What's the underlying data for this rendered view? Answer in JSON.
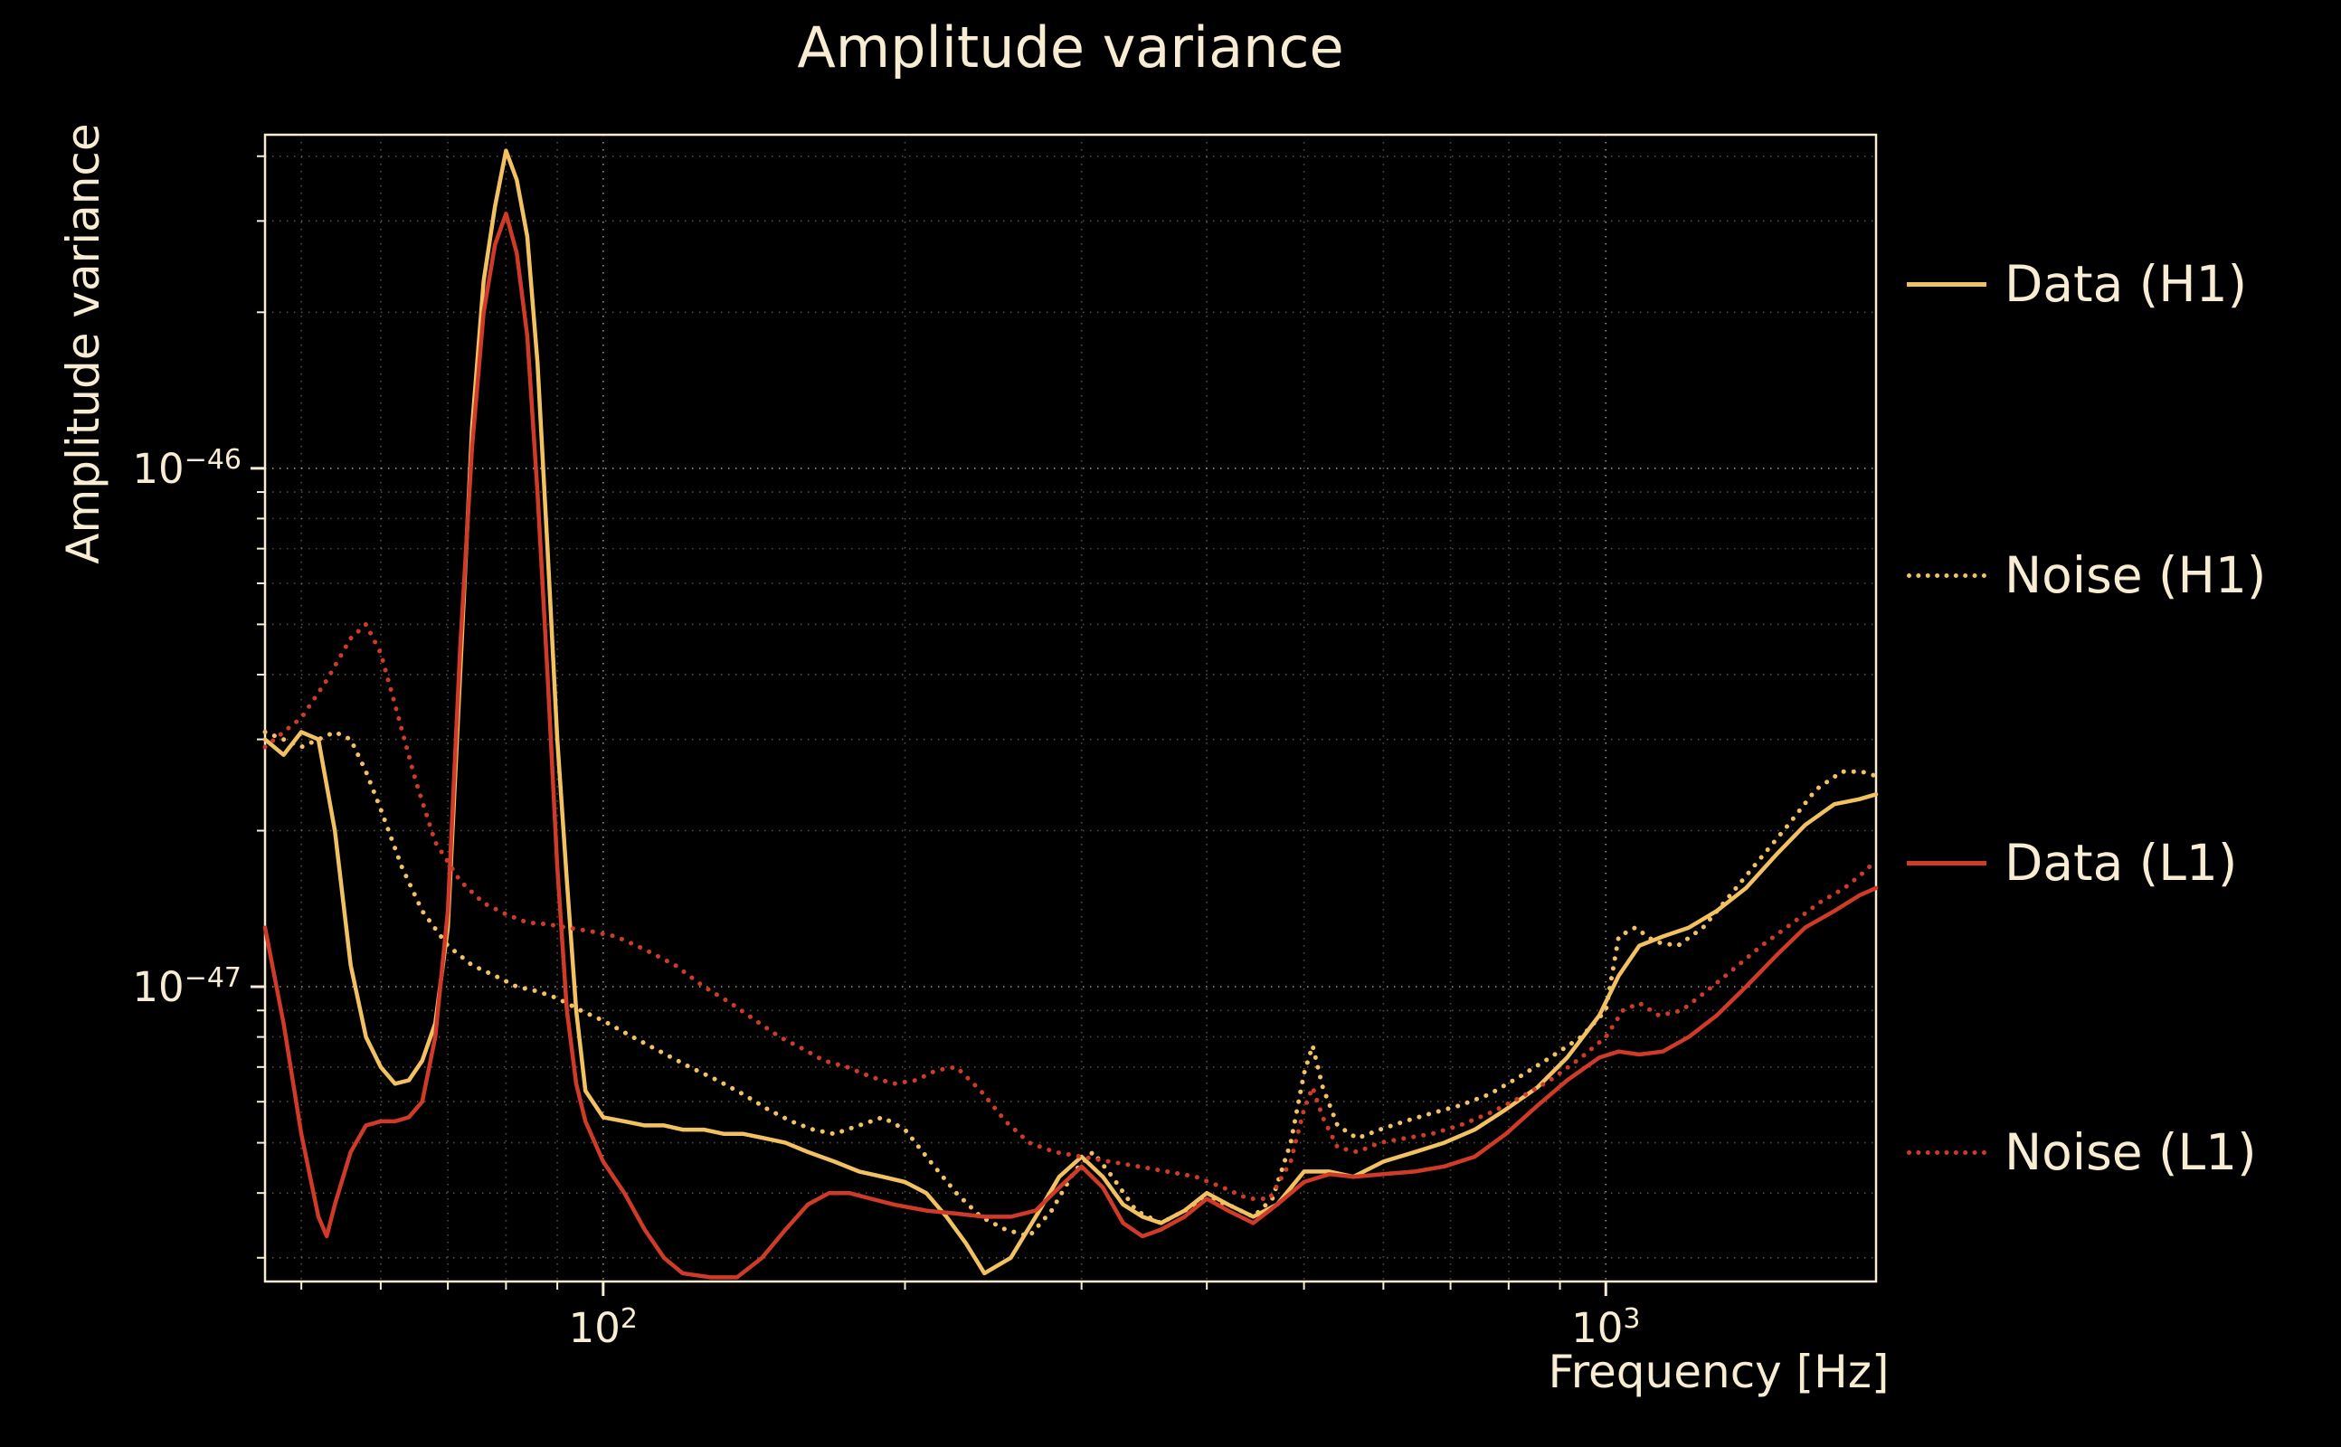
{
  "title": "Amplitude variance",
  "colors": {
    "background": "#000000",
    "text": "#f8edd2",
    "grid": "#f8edd2",
    "h1": "#f2c262",
    "l1": "#cf3b28"
  },
  "chart_data": {
    "type": "line",
    "title": "Amplitude variance",
    "xlabel": "Frequency [Hz]",
    "ylabel": "Amplitude variance",
    "xscale": "log",
    "yscale": "log",
    "xlim": [
      46,
      1860
    ],
    "ylim": [
      2.7e-48,
      4.4e-46
    ],
    "grid": true,
    "legend_position": "right-outside",
    "x_tick_labels": [
      {
        "value": 100,
        "base": "10",
        "exp": "2"
      },
      {
        "value": 1000,
        "base": "10",
        "exp": "3"
      }
    ],
    "y_tick_labels": [
      {
        "value": 1e-46,
        "base": "10",
        "exp": "−46"
      },
      {
        "value": 1e-47,
        "base": "10",
        "exp": "−47"
      }
    ],
    "series": [
      {
        "name": "Data (H1)",
        "color": "#f2c262",
        "style": "solid",
        "x": [
          46,
          48,
          50,
          52,
          54,
          56,
          58,
          60,
          62,
          64,
          66,
          68,
          70,
          72,
          74,
          76,
          78,
          80,
          82,
          84,
          86,
          88,
          90,
          92,
          94,
          96,
          100,
          105,
          110,
          115,
          120,
          126,
          132,
          138,
          145,
          152,
          160,
          170,
          180,
          190,
          200,
          210,
          220,
          230,
          240,
          255,
          270,
          285,
          300,
          315,
          330,
          345,
          360,
          380,
          400,
          420,
          445,
          470,
          500,
          530,
          560,
          600,
          645,
          690,
          740,
          795,
          855,
          915,
          985,
          1030,
          1080,
          1140,
          1210,
          1290,
          1380,
          1480,
          1580,
          1690,
          1790,
          1860
        ],
        "y": [
          3e-47,
          2.8e-47,
          3.1e-47,
          3e-47,
          2e-47,
          1.1e-47,
          8e-48,
          7e-48,
          6.5e-48,
          6.6e-48,
          7.2e-48,
          8.5e-48,
          1.3e-47,
          4e-47,
          1.2e-46,
          2.3e-46,
          3.2e-46,
          4.1e-46,
          3.6e-46,
          2.8e-46,
          1.6e-46,
          7e-47,
          3e-47,
          1.6e-47,
          9e-48,
          6.3e-48,
          5.6e-48,
          5.5e-48,
          5.4e-48,
          5.4e-48,
          5.3e-48,
          5.3e-48,
          5.2e-48,
          5.2e-48,
          5.1e-48,
          5e-48,
          4.8e-48,
          4.6e-48,
          4.4e-48,
          4.3e-48,
          4.2e-48,
          4e-48,
          3.6e-48,
          3.2e-48,
          2.8e-48,
          3e-48,
          3.6e-48,
          4.3e-48,
          4.7e-48,
          4.3e-48,
          3.8e-48,
          3.6e-48,
          3.5e-48,
          3.7e-48,
          4e-48,
          3.8e-48,
          3.6e-48,
          3.8e-48,
          4.4e-48,
          4.4e-48,
          4.3e-48,
          4.6e-48,
          4.8e-48,
          5e-48,
          5.3e-48,
          5.8e-48,
          6.4e-48,
          7.3e-48,
          8.8e-48,
          1.05e-47,
          1.2e-47,
          1.25e-47,
          1.3e-47,
          1.4e-47,
          1.55e-47,
          1.8e-47,
          2.05e-47,
          2.25e-47,
          2.3e-47,
          2.35e-47
        ]
      },
      {
        "name": "Noise (H1)",
        "color": "#f2c262",
        "style": "dotted",
        "x": [
          46,
          48,
          50,
          52,
          54,
          56,
          58,
          60,
          63,
          66,
          70,
          74,
          78,
          82,
          86,
          90,
          95,
          100,
          107,
          114,
          122,
          130,
          138,
          146,
          154,
          162,
          170,
          180,
          190,
          200,
          212,
          225,
          238,
          252,
          266,
          280,
          295,
          308,
          322,
          340,
          360,
          380,
          400,
          420,
          445,
          465,
          485,
          500,
          510,
          522,
          540,
          565,
          595,
          630,
          670,
          715,
          765,
          820,
          880,
          945,
          1000,
          1030,
          1070,
          1120,
          1180,
          1250,
          1330,
          1420,
          1520,
          1620,
          1720,
          1800,
          1860
        ],
        "y": [
          3.1e-47,
          3e-47,
          2.9e-47,
          3e-47,
          3.1e-47,
          3e-47,
          2.6e-47,
          2.2e-47,
          1.7e-47,
          1.4e-47,
          1.2e-47,
          1.1e-47,
          1.05e-47,
          1e-47,
          9.8e-48,
          9.5e-48,
          9e-48,
          8.6e-48,
          8e-48,
          7.5e-48,
          7e-48,
          6.6e-48,
          6.2e-48,
          5.8e-48,
          5.5e-48,
          5.3e-48,
          5.2e-48,
          5.4e-48,
          5.6e-48,
          5.3e-48,
          4.6e-48,
          4e-48,
          3.6e-48,
          3.4e-48,
          3.3e-48,
          3.7e-48,
          4.4e-48,
          4.8e-48,
          4.3e-48,
          3.7e-48,
          3.5e-48,
          3.7e-48,
          3.9e-48,
          3.8e-48,
          3.6e-48,
          3.9e-48,
          5e-48,
          6.8e-48,
          7.7e-48,
          6.4e-48,
          5.4e-48,
          5.1e-48,
          5.3e-48,
          5.5e-48,
          5.7e-48,
          5.9e-48,
          6.2e-48,
          6.7e-48,
          7.3e-48,
          8e-48,
          9e-48,
          1.25e-47,
          1.3e-47,
          1.22e-47,
          1.2e-47,
          1.3e-47,
          1.5e-47,
          1.75e-47,
          2.05e-47,
          2.4e-47,
          2.6e-47,
          2.6e-47,
          2.55e-47
        ]
      },
      {
        "name": "Data (L1)",
        "color": "#cf3b28",
        "style": "solid",
        "x": [
          46,
          48,
          50,
          52,
          53,
          54,
          56,
          58,
          60,
          62,
          64,
          66,
          68,
          70,
          72,
          74,
          76,
          78,
          80,
          82,
          84,
          86,
          88,
          90,
          92,
          94,
          96,
          100,
          105,
          110,
          115,
          120,
          128,
          136,
          144,
          152,
          160,
          168,
          176,
          185,
          195,
          210,
          225,
          240,
          255,
          270,
          285,
          300,
          315,
          330,
          345,
          360,
          380,
          400,
          420,
          445,
          470,
          500,
          530,
          560,
          600,
          645,
          690,
          740,
          795,
          855,
          915,
          985,
          1030,
          1080,
          1140,
          1210,
          1290,
          1380,
          1480,
          1580,
          1690,
          1790,
          1860
        ],
        "y": [
          1.3e-47,
          8.5e-48,
          5.2e-48,
          3.6e-48,
          3.3e-48,
          3.8e-48,
          4.8e-48,
          5.4e-48,
          5.5e-48,
          5.5e-48,
          5.6e-48,
          6e-48,
          8e-48,
          1.4e-47,
          4.5e-47,
          1.1e-46,
          2e-46,
          2.7e-46,
          3.1e-46,
          2.6e-46,
          1.8e-46,
          9e-47,
          4e-47,
          1.7e-47,
          9e-48,
          6.5e-48,
          5.5e-48,
          4.6e-48,
          4e-48,
          3.4e-48,
          3e-48,
          2.8e-48,
          2.75e-48,
          2.75e-48,
          3e-48,
          3.4e-48,
          3.8e-48,
          4e-48,
          4e-48,
          3.9e-48,
          3.8e-48,
          3.7e-48,
          3.65e-48,
          3.6e-48,
          3.6e-48,
          3.7e-48,
          4.1e-48,
          4.5e-48,
          4.1e-48,
          3.5e-48,
          3.3e-48,
          3.4e-48,
          3.6e-48,
          3.9e-48,
          3.7e-48,
          3.5e-48,
          3.8e-48,
          4.2e-48,
          4.35e-48,
          4.3e-48,
          4.35e-48,
          4.4e-48,
          4.5e-48,
          4.7e-48,
          5.2e-48,
          5.9e-48,
          6.6e-48,
          7.3e-48,
          7.5e-48,
          7.4e-48,
          7.5e-48,
          8e-48,
          8.8e-48,
          1e-47,
          1.15e-47,
          1.3e-47,
          1.4e-47,
          1.5e-47,
          1.55e-47
        ]
      },
      {
        "name": "Noise (L1)",
        "color": "#cf3b28",
        "style": "dotted",
        "x": [
          46,
          48,
          50,
          53,
          56,
          58,
          60,
          62,
          65,
          68,
          72,
          76,
          80,
          84,
          88,
          92,
          97,
          103,
          110,
          118,
          126,
          134,
          142,
          150,
          158,
          166,
          175,
          185,
          195,
          205,
          215,
          225,
          238,
          252,
          266,
          282,
          300,
          320,
          342,
          365,
          390,
          415,
          440,
          462,
          485,
          500,
          510,
          522,
          540,
          565,
          595,
          630,
          670,
          715,
          765,
          820,
          880,
          945,
          1000,
          1040,
          1080,
          1130,
          1190,
          1260,
          1340,
          1430,
          1530,
          1630,
          1730,
          1800,
          1860
        ],
        "y": [
          2.9e-47,
          3.1e-47,
          3.3e-47,
          3.9e-47,
          4.7e-47,
          5e-47,
          4.4e-47,
          3.5e-47,
          2.5e-47,
          1.9e-47,
          1.6e-47,
          1.45e-47,
          1.38e-47,
          1.33e-47,
          1.32e-47,
          1.3e-47,
          1.28e-47,
          1.25e-47,
          1.18e-47,
          1.1e-47,
          1e-47,
          9.3e-48,
          8.6e-48,
          8e-48,
          7.6e-48,
          7.2e-48,
          7e-48,
          6.7e-48,
          6.5e-48,
          6.6e-48,
          6.9e-48,
          7e-48,
          6.3e-48,
          5.5e-48,
          5e-48,
          4.8e-48,
          4.7e-48,
          4.6e-48,
          4.5e-48,
          4.4e-48,
          4.3e-48,
          4.1e-48,
          3.9e-48,
          3.9e-48,
          4.6e-48,
          5.8e-48,
          6.4e-48,
          5.6e-48,
          4.9e-48,
          4.8e-48,
          5e-48,
          5.1e-48,
          5.2e-48,
          5.4e-48,
          5.7e-48,
          6.1e-48,
          6.6e-48,
          7.3e-48,
          8e-48,
          9e-48,
          9.3e-48,
          8.8e-48,
          9e-48,
          9.8e-48,
          1.08e-47,
          1.2e-47,
          1.32e-47,
          1.45e-47,
          1.55e-47,
          1.65e-47,
          1.75e-47
        ]
      }
    ]
  }
}
